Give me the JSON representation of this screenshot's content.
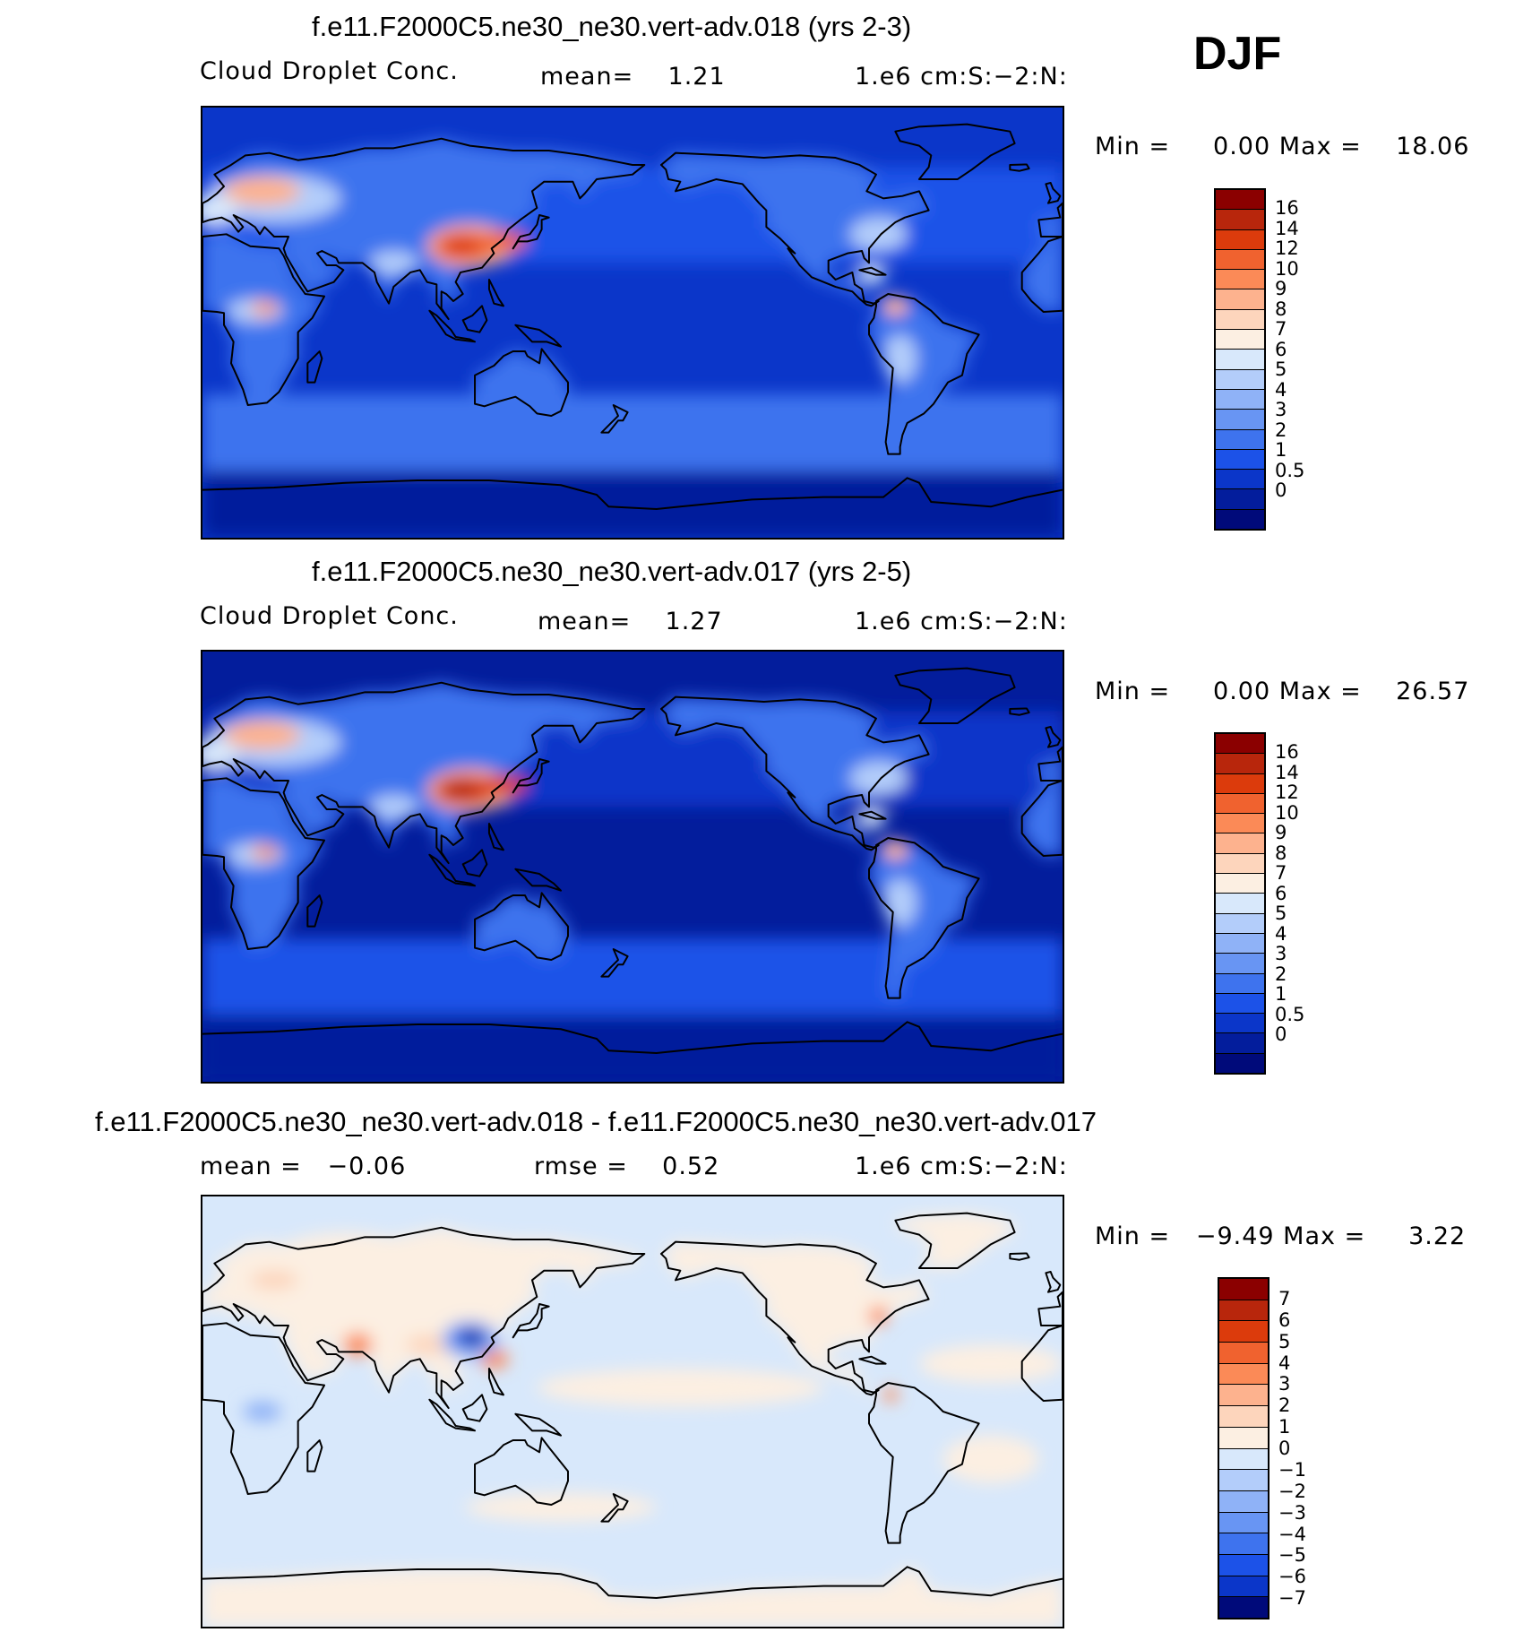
{
  "season": "DJF",
  "panels": [
    {
      "title": "f.e11.F2000C5.ne30_ne30.vert-adv.018 (yrs 2-3)",
      "left_label": "Cloud Droplet Conc.",
      "center_label": "mean=    1.21",
      "right_label": "1.e6 cm:S:−2:N:",
      "minmax": "Min =     0.00 Max =    18.06",
      "colorbar": {
        "labels": [
          "16",
          "14",
          "12",
          "10",
          "9",
          "8",
          "7",
          "6",
          "5",
          "4",
          "3",
          "2",
          "1",
          "0.5",
          "0"
        ],
        "colors": [
          "#8b0000",
          "#b8260c",
          "#dc3b0c",
          "#f0622f",
          "#fb8a57",
          "#fdb28e",
          "#fdd5bc",
          "#fcefe2",
          "#d8e8fb",
          "#b3cdfa",
          "#8fb2f7",
          "#6895f3",
          "#3e73ee",
          "#1c52e8",
          "#0b36c9",
          "#031d9c",
          "#000a7a"
        ]
      },
      "field": {
        "ocean_tropics": "#0b36c9",
        "ocean_midlat": "#1c52e8",
        "ocean_deep": "#031d9c",
        "land_base": "#3e73ee",
        "storm_track": "#3e73ee",
        "hot_1": "#dc3b0c",
        "hot_2": "#f0622f",
        "warm": "#fdb28e",
        "light": "#d8e8fb",
        "pale": "#b3cdfa"
      }
    },
    {
      "title": "f.e11.F2000C5.ne30_ne30.vert-adv.017 (yrs 2-5)",
      "left_label": "Cloud Droplet Conc.",
      "center_label": "mean=    1.27",
      "right_label": "1.e6 cm:S:−2:N:",
      "minmax": "Min =     0.00 Max =    26.57",
      "colorbar": {
        "labels": [
          "16",
          "14",
          "12",
          "10",
          "9",
          "8",
          "7",
          "6",
          "5",
          "4",
          "3",
          "2",
          "1",
          "0.5",
          "0"
        ],
        "colors": [
          "#8b0000",
          "#b8260c",
          "#dc3b0c",
          "#f0622f",
          "#fb8a57",
          "#fdb28e",
          "#fdd5bc",
          "#fcefe2",
          "#d8e8fb",
          "#b3cdfa",
          "#8fb2f7",
          "#6895f3",
          "#3e73ee",
          "#1c52e8",
          "#0b36c9",
          "#031d9c",
          "#000a7a"
        ]
      },
      "field": {
        "ocean_tropics": "#031d9c",
        "ocean_midlat": "#0b36c9",
        "ocean_deep": "#031d9c",
        "land_base": "#3e73ee",
        "storm_track": "#1c52e8",
        "hot_1": "#b8260c",
        "hot_2": "#dc3b0c",
        "warm": "#fdb28e",
        "light": "#d8e8fb",
        "pale": "#b3cdfa"
      }
    },
    {
      "title": "f.e11.F2000C5.ne30_ne30.vert-adv.018 - f.e11.F2000C5.ne30_ne30.vert-adv.017",
      "left_label": "mean =   −0.06",
      "center_label": "rmse =    0.52",
      "right_label": "1.e6 cm:S:−2:N:",
      "minmax": "Min =   −9.49 Max =     3.22",
      "colorbar": {
        "labels": [
          "7",
          "6",
          "5",
          "4",
          "3",
          "2",
          "1",
          "0",
          "−1",
          "−2",
          "−3",
          "−4",
          "−5",
          "−6",
          "−7"
        ],
        "colors": [
          "#8b0000",
          "#b8260c",
          "#dc3b0c",
          "#f0622f",
          "#fb8a57",
          "#fdb28e",
          "#fdd5bc",
          "#fcefe2",
          "#d8e8fb",
          "#b3cdfa",
          "#8fb2f7",
          "#6895f3",
          "#3e73ee",
          "#1c52e8",
          "#0b36c9",
          "#000a7a"
        ]
      },
      "field": {
        "pos": "#fcefe2",
        "neg": "#d8e8fb",
        "pos_strong": "#fdd5bc",
        "pos_warm": "#fb8a57",
        "neg_strong": "#031d9c",
        "neg_mid": "#3e73ee",
        "neg_light": "#8fb2f7"
      }
    }
  ]
}
